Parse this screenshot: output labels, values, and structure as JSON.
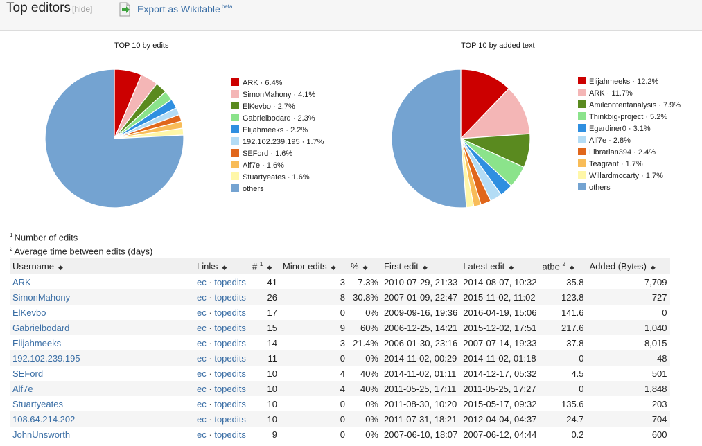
{
  "header": {
    "title": "Top editors",
    "hide_label": "hide",
    "export_label": "Export as Wikitable",
    "export_badge": "beta"
  },
  "charts": [
    {
      "title": "TOP 10 by edits",
      "legend": [
        {
          "label": "ARK · 6.4%",
          "value": 6.4,
          "color": "#cc0000"
        },
        {
          "label": "SimonMahony · 4.1%",
          "value": 4.1,
          "color": "#f4b6b6"
        },
        {
          "label": "ElKevbo · 2.7%",
          "value": 2.7,
          "color": "#5a8a1f"
        },
        {
          "label": "Gabrielbodard · 2.3%",
          "value": 2.3,
          "color": "#8be38b"
        },
        {
          "label": "Elijahmeeks · 2.2%",
          "value": 2.2,
          "color": "#2f8fe0"
        },
        {
          "label": "192.102.239.195 · 1.7%",
          "value": 1.7,
          "color": "#b3dcf5"
        },
        {
          "label": "SEFord · 1.6%",
          "value": 1.6,
          "color": "#e0661b"
        },
        {
          "label": "Alf7e · 1.6%",
          "value": 1.6,
          "color": "#f8bc58"
        },
        {
          "label": "Stuartyeates · 1.6%",
          "value": 1.6,
          "color": "#fff7a8"
        },
        {
          "label": "others",
          "value": 75.8,
          "color": "#74a3d1"
        }
      ]
    },
    {
      "title": "TOP 10 by added text",
      "legend": [
        {
          "label": "Elijahmeeks · 12.2%",
          "value": 12.2,
          "color": "#cc0000"
        },
        {
          "label": "ARK · 11.7%",
          "value": 11.7,
          "color": "#f4b6b6"
        },
        {
          "label": "Amilcontentanalysis · 7.9%",
          "value": 7.9,
          "color": "#5a8a1f"
        },
        {
          "label": "Thinkbig-project · 5.2%",
          "value": 5.2,
          "color": "#8be38b"
        },
        {
          "label": "Egardiner0 · 3.1%",
          "value": 3.1,
          "color": "#2f8fe0"
        },
        {
          "label": "Alf7e · 2.8%",
          "value": 2.8,
          "color": "#b3dcf5"
        },
        {
          "label": "Librarian394 · 2.4%",
          "value": 2.4,
          "color": "#e0661b"
        },
        {
          "label": "Teagrant · 1.7%",
          "value": 1.7,
          "color": "#f8bc58"
        },
        {
          "label": "Willardmccarty · 1.7%",
          "value": 1.7,
          "color": "#fff7a8"
        },
        {
          "label": "others",
          "value": 51.3,
          "color": "#74a3d1"
        }
      ]
    }
  ],
  "notes": {
    "n1_mark": "1",
    "n1_text": "Number of edits",
    "n2_mark": "2",
    "n2_text": "Average time between edits (days)"
  },
  "table": {
    "headers": {
      "username": "Username",
      "links": "Links",
      "count": "#",
      "count_sup": "1",
      "minor": "Minor edits",
      "pct": "%",
      "first": "First edit",
      "latest": "Latest edit",
      "atbe": "atbe",
      "atbe_sup": "2",
      "added": "Added (Bytes)"
    },
    "sort_glyph": "◆",
    "link_ec": "ec",
    "link_sep": "·",
    "link_top": "topedits",
    "rows": [
      {
        "user": "ARK",
        "count": "41",
        "minor": "3",
        "pct": "7.3%",
        "first": "2010-07-29, 21:33",
        "latest": "2014-08-07, 10:32",
        "atbe": "35.8",
        "added": "7,709"
      },
      {
        "user": "SimonMahony",
        "count": "26",
        "minor": "8",
        "pct": "30.8%",
        "first": "2007-01-09, 22:47",
        "latest": "2015-11-02, 11:02",
        "atbe": "123.8",
        "added": "727"
      },
      {
        "user": "ElKevbo",
        "count": "17",
        "minor": "0",
        "pct": "0%",
        "first": "2009-09-16, 19:36",
        "latest": "2016-04-19, 15:06",
        "atbe": "141.6",
        "added": "0"
      },
      {
        "user": "Gabrielbodard",
        "count": "15",
        "minor": "9",
        "pct": "60%",
        "first": "2006-12-25, 14:21",
        "latest": "2015-12-02, 17:51",
        "atbe": "217.6",
        "added": "1,040"
      },
      {
        "user": "Elijahmeeks",
        "count": "14",
        "minor": "3",
        "pct": "21.4%",
        "first": "2006-01-30, 23:16",
        "latest": "2007-07-14, 19:33",
        "atbe": "37.8",
        "added": "8,015"
      },
      {
        "user": "192.102.239.195",
        "count": "11",
        "minor": "0",
        "pct": "0%",
        "first": "2014-11-02, 00:29",
        "latest": "2014-11-02, 01:18",
        "atbe": "0",
        "added": "48"
      },
      {
        "user": "SEFord",
        "count": "10",
        "minor": "4",
        "pct": "40%",
        "first": "2014-11-02, 01:11",
        "latest": "2014-12-17, 05:32",
        "atbe": "4.5",
        "added": "501"
      },
      {
        "user": "Alf7e",
        "count": "10",
        "minor": "4",
        "pct": "40%",
        "first": "2011-05-25, 17:11",
        "latest": "2011-05-25, 17:27",
        "atbe": "0",
        "added": "1,848"
      },
      {
        "user": "Stuartyeates",
        "count": "10",
        "minor": "0",
        "pct": "0%",
        "first": "2011-08-30, 10:20",
        "latest": "2015-05-17, 09:32",
        "atbe": "135.6",
        "added": "203"
      },
      {
        "user": "108.64.214.202",
        "count": "10",
        "minor": "0",
        "pct": "0%",
        "first": "2011-07-31, 18:21",
        "latest": "2012-04-04, 04:37",
        "atbe": "24.7",
        "added": "704"
      },
      {
        "user": "JohnUnsworth",
        "count": "9",
        "minor": "0",
        "pct": "0%",
        "first": "2007-06-10, 18:07",
        "latest": "2007-06-12, 04:44",
        "atbe": "0.2",
        "added": "600"
      }
    ]
  }
}
